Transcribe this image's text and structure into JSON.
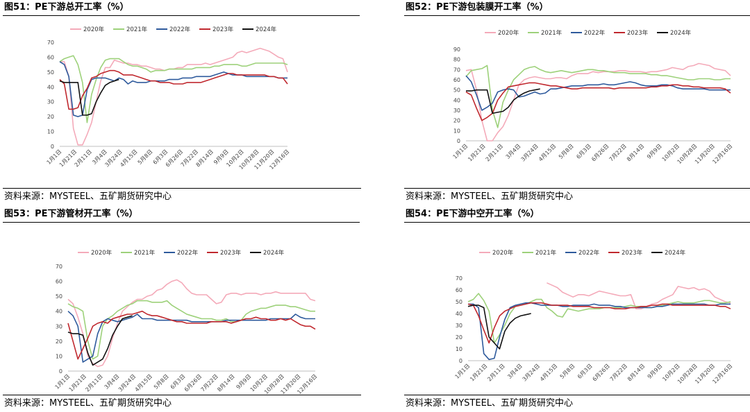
{
  "colors": {
    "2020": "#f4aab9",
    "2021": "#9dd17a",
    "2022": "#2e5a9c",
    "2023": "#c0282e",
    "2024": "#111111"
  },
  "x_ticks": [
    "1月1日",
    "1月21日",
    "2月11日",
    "3月4日",
    "3月24日",
    "4月15日",
    "5月8日",
    "6月3日",
    "6月26日",
    "7月22日",
    "8月14日",
    "9月9日",
    "10月2日",
    "10月28日",
    "11月20日",
    "12月16日"
  ],
  "chart_data": [
    {
      "type": "line",
      "title": "图51：PE下游总开工率（%）",
      "source": "资料来源：MYSTEEL、五矿期货研究中心",
      "ylim": [
        0,
        70
      ],
      "yticks": [
        "0",
        "10",
        "20",
        "30",
        "40",
        "50",
        "60",
        "70"
      ],
      "x_count": 51,
      "series": [
        {
          "name": "2020年",
          "values": [
            57,
            57,
            47,
            12,
            1,
            1,
            8,
            16,
            30,
            44,
            53,
            53,
            58,
            57,
            56,
            56,
            55,
            55,
            54,
            54,
            53,
            52,
            52,
            51,
            52,
            52,
            53,
            53,
            55,
            55,
            55,
            55,
            56,
            55,
            56,
            57,
            58,
            59,
            60,
            63,
            64,
            63,
            64,
            65,
            66,
            65,
            64,
            62,
            60,
            59,
            50
          ]
        },
        {
          "name": "2021年",
          "values": [
            57,
            59,
            60,
            61,
            55,
            43,
            16,
            35,
            45,
            53,
            58,
            59,
            59,
            59,
            57,
            55,
            54,
            54,
            53,
            52,
            50,
            51,
            51,
            51,
            52,
            52,
            52,
            52,
            52,
            52,
            53,
            53,
            53,
            53,
            54,
            54,
            55,
            55,
            55,
            55,
            54,
            54,
            55,
            56,
            56,
            56,
            56,
            56,
            56,
            56,
            55
          ]
        },
        {
          "name": "2022年",
          "values": [
            57,
            55,
            47,
            21,
            20,
            21,
            38,
            45,
            46,
            46,
            46,
            45,
            44,
            46,
            45,
            42,
            44,
            43,
            43,
            43,
            44,
            44,
            44,
            44,
            45,
            45,
            45,
            46,
            46,
            46,
            47,
            47,
            47,
            47,
            48,
            49,
            50,
            49,
            48,
            48,
            48,
            47,
            47,
            47,
            47,
            47,
            47,
            47,
            46,
            46,
            46
          ]
        },
        {
          "name": "2023年",
          "values": [
            45,
            42,
            25,
            25,
            26,
            34,
            39,
            46,
            47,
            49,
            50,
            51,
            51,
            50,
            48,
            48,
            48,
            47,
            46,
            45,
            44,
            44,
            43,
            43,
            43,
            42,
            42,
            42,
            43,
            43,
            43,
            43,
            44,
            45,
            46,
            47,
            48,
            49,
            49,
            48,
            48,
            48,
            48,
            48,
            48,
            48,
            47,
            47,
            46,
            46,
            42
          ]
        },
        {
          "name": "2024年",
          "values": [
            44,
            43,
            43,
            43,
            43,
            21,
            21,
            22,
            30,
            36,
            41,
            43,
            44,
            45
          ]
        }
      ]
    },
    {
      "type": "line",
      "title": "图52：PE下游包装膜开工率（%）",
      "source": "资料来源：MYSTEEL、五矿期货研究中心",
      "ylim": [
        0,
        90
      ],
      "yticks": [
        "0",
        "10",
        "20",
        "30",
        "40",
        "50",
        "60",
        "70",
        "80",
        "90"
      ],
      "x_count": 51,
      "series": [
        {
          "name": "2020年",
          "values": [
            69,
            70,
            50,
            20,
            0,
            0,
            8,
            14,
            25,
            40,
            55,
            60,
            62,
            63,
            62,
            61,
            61,
            62,
            62,
            61,
            64,
            66,
            66,
            66,
            68,
            67,
            68,
            68,
            68,
            69,
            69,
            68,
            68,
            68,
            67,
            68,
            68,
            69,
            70,
            72,
            71,
            70,
            73,
            74,
            76,
            75,
            74,
            71,
            70,
            69,
            64
          ]
        },
        {
          "name": "2021年",
          "values": [
            63,
            69,
            70,
            71,
            74,
            30,
            13,
            38,
            50,
            60,
            65,
            70,
            72,
            73,
            70,
            68,
            67,
            68,
            69,
            68,
            67,
            68,
            69,
            70,
            70,
            69,
            69,
            68,
            67,
            67,
            67,
            66,
            66,
            66,
            66,
            65,
            65,
            64,
            64,
            63,
            62,
            61,
            60,
            60,
            61,
            61,
            61,
            60,
            60,
            61,
            61
          ]
        },
        {
          "name": "2022年",
          "values": [
            64,
            58,
            45,
            30,
            33,
            37,
            48,
            50,
            51,
            50,
            43,
            44,
            46,
            48,
            46,
            47,
            51,
            51,
            52,
            53,
            54,
            54,
            54,
            55,
            55,
            55,
            56,
            55,
            55,
            56,
            57,
            58,
            57,
            55,
            54,
            54,
            54,
            55,
            55,
            54,
            52,
            51,
            51,
            51,
            51,
            51,
            50,
            50,
            50,
            50,
            50
          ]
        },
        {
          "name": "2023年",
          "values": [
            48,
            45,
            32,
            20,
            23,
            27,
            40,
            47,
            53,
            54,
            55,
            56,
            57,
            57,
            56,
            55,
            54,
            54,
            53,
            52,
            51,
            51,
            52,
            52,
            52,
            52,
            52,
            52,
            51,
            52,
            52,
            52,
            52,
            52,
            52,
            53,
            53,
            54,
            54,
            55,
            55,
            54,
            54,
            53,
            53,
            52,
            52,
            52,
            52,
            51,
            47
          ]
        },
        {
          "name": "2024年",
          "values": [
            49,
            49,
            50,
            50,
            50,
            27,
            28,
            29,
            33,
            40,
            44,
            47,
            49,
            50,
            51
          ]
        }
      ]
    },
    {
      "type": "line",
      "title": "图53：PE下游管材开工率（%）",
      "source": "资料来源：MYSTEEL、五矿期货研究中心",
      "ylim": [
        0,
        70
      ],
      "yticks": [
        "0",
        "10",
        "20",
        "30",
        "40",
        "50",
        "60",
        "70"
      ],
      "x_count": 51,
      "series": [
        {
          "name": "2020年",
          "values": [
            48,
            45,
            36,
            25,
            10,
            5,
            3,
            4,
            10,
            22,
            32,
            40,
            43,
            46,
            48,
            48,
            50,
            51,
            54,
            55,
            58,
            60,
            61,
            59,
            55,
            52,
            51,
            51,
            51,
            48,
            45,
            46,
            51,
            52,
            52,
            51,
            52,
            52,
            52,
            51,
            52,
            52,
            53,
            52,
            52,
            52,
            52,
            52,
            52,
            48,
            47
          ]
        },
        {
          "name": "2021年",
          "values": [
            45,
            43,
            42,
            40,
            20,
            8,
            10,
            30,
            35,
            37,
            40,
            42,
            44,
            45,
            47,
            47,
            47,
            46,
            46,
            46,
            47,
            44,
            42,
            40,
            38,
            37,
            36,
            35,
            35,
            35,
            34,
            34,
            35,
            33,
            33,
            34,
            38,
            40,
            41,
            42,
            42,
            43,
            44,
            44,
            44,
            43,
            43,
            42,
            41,
            40,
            40
          ]
        },
        {
          "name": "2022年",
          "values": [
            40,
            37,
            30,
            6,
            8,
            10,
            25,
            33,
            35,
            34,
            33,
            34,
            35,
            36,
            38,
            35,
            35,
            35,
            34,
            34,
            34,
            34,
            34,
            34,
            34,
            33,
            33,
            33,
            33,
            33,
            33,
            33,
            34,
            34,
            34,
            34,
            34,
            34,
            34,
            34,
            34,
            35,
            35,
            35,
            35,
            35,
            38,
            36,
            35,
            35,
            35
          ]
        },
        {
          "name": "2023年",
          "values": [
            32,
            20,
            8,
            15,
            22,
            30,
            32,
            33,
            32,
            35,
            36,
            37,
            38,
            38,
            39,
            40,
            38,
            37,
            37,
            36,
            35,
            34,
            33,
            33,
            32,
            32,
            32,
            32,
            32,
            33,
            33,
            33,
            33,
            32,
            33,
            34,
            35,
            35,
            36,
            35,
            35,
            34,
            34,
            35,
            34,
            35,
            33,
            31,
            30,
            30,
            28
          ]
        },
        {
          "name": "2024年",
          "values": [
            26,
            25,
            25,
            24,
            12,
            4,
            6,
            8,
            15,
            24,
            30,
            35,
            36,
            37
          ]
        }
      ]
    },
    {
      "type": "line",
      "title": "图54：PE下游中空开工率（%）",
      "source": "资料来源：MYSTEEL、五矿期货研究中心",
      "ylim": [
        0,
        70
      ],
      "yticks": [
        "0",
        "10",
        "20",
        "30",
        "40",
        "50",
        "60",
        "70"
      ],
      "x_count": 51,
      "series": [
        {
          "name": "2020年",
          "values": [
            null,
            null,
            null,
            null,
            null,
            null,
            null,
            null,
            null,
            null,
            null,
            null,
            null,
            null,
            null,
            66,
            64,
            62,
            58,
            56,
            54,
            56,
            56,
            55,
            57,
            59,
            58,
            57,
            56,
            55,
            55,
            56,
            44,
            44,
            46,
            48,
            49,
            52,
            54,
            56,
            63,
            62,
            61,
            62,
            60,
            61,
            59,
            54,
            52,
            50,
            49
          ]
        },
        {
          "name": "2021年",
          "values": [
            50,
            52,
            57,
            51,
            42,
            15,
            22,
            30,
            40,
            46,
            47,
            48,
            50,
            52,
            52,
            45,
            42,
            38,
            37,
            44,
            43,
            42,
            43,
            44,
            44,
            44,
            45,
            45,
            45,
            45,
            46,
            47,
            46,
            46,
            45,
            45,
            46,
            47,
            48,
            49,
            50,
            49,
            49,
            49,
            50,
            51,
            51,
            50,
            49,
            49,
            50
          ]
        },
        {
          "name": "2022年",
          "values": [
            48,
            48,
            45,
            6,
            1,
            2,
            20,
            35,
            45,
            47,
            48,
            49,
            49,
            48,
            47,
            47,
            47,
            47,
            46,
            46,
            47,
            47,
            47,
            47,
            48,
            47,
            47,
            47,
            46,
            46,
            45,
            45,
            45,
            45,
            45,
            45,
            46,
            46,
            47,
            48,
            48,
            48,
            48,
            48,
            48,
            48,
            47,
            47,
            48,
            48,
            48
          ]
        },
        {
          "name": "2023年",
          "values": [
            48,
            47,
            38,
            26,
            15,
            28,
            38,
            42,
            44,
            46,
            47,
            48,
            49,
            49,
            49,
            48,
            47,
            47,
            47,
            47,
            46,
            46,
            46,
            46,
            45,
            45,
            45,
            45,
            44,
            44,
            44,
            45,
            45,
            46,
            46,
            47,
            47,
            48,
            48,
            47,
            47,
            47,
            47,
            47,
            47,
            47,
            47,
            47,
            46,
            46,
            44
          ]
        },
        {
          "name": "2024年",
          "values": [
            46,
            47,
            47,
            45,
            20,
            15,
            10,
            25,
            32,
            36,
            38,
            39,
            40
          ]
        }
      ]
    }
  ]
}
